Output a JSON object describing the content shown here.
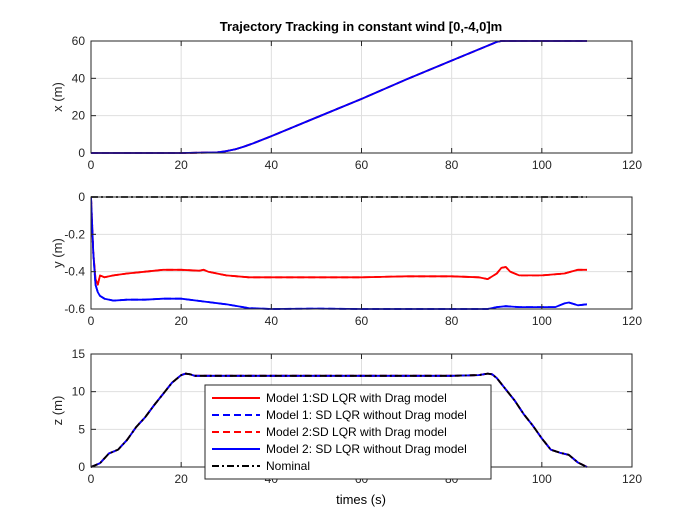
{
  "figure": {
    "title": "Trajectory Tracking in constant wind [0,-4,0]m",
    "xlabel": "times (s)"
  },
  "legend": {
    "placement": "bottom-center",
    "entries": [
      {
        "label": "Model 1:SD LQR with Drag model",
        "color": "#ff0000",
        "dash": "solid"
      },
      {
        "label": "Model 1: SD LQR without Drag model",
        "color": "#0000ff",
        "dash": "dashed"
      },
      {
        "label": "Model 2:SD LQR with Drag model",
        "color": "#ff0000",
        "dash": "dashed"
      },
      {
        "label": "Model 2: SD LQR without Drag model",
        "color": "#0000ff",
        "dash": "solid"
      },
      {
        "label": "Nominal",
        "color": "#000000",
        "dash": "dashdot"
      }
    ]
  },
  "chart_data": [
    {
      "type": "line",
      "title": "Trajectory Tracking in constant wind [0,-4,0]m",
      "xlabel": "",
      "ylabel": "x (m)",
      "xlim": [
        0,
        120
      ],
      "ylim": [
        0,
        60
      ],
      "xticks": [
        0,
        20,
        40,
        60,
        80,
        100,
        120
      ],
      "yticks": [
        0,
        20,
        40,
        60
      ],
      "grid": true,
      "series": [
        {
          "color": "#ff0000",
          "dash": "solid",
          "x": [
            0,
            20,
            28,
            30,
            32,
            34,
            36,
            40,
            50,
            60,
            70,
            80,
            88,
            90,
            91,
            92,
            95,
            100,
            110
          ],
          "y": [
            0,
            0,
            0.3,
            1,
            2,
            3.5,
            5.2,
            9,
            19,
            29,
            39.5,
            49.5,
            57.5,
            59.5,
            60,
            60,
            60,
            60,
            60
          ]
        },
        {
          "color": "#0000ff",
          "dash": "dashed",
          "x": [
            0,
            20,
            28,
            30,
            32,
            34,
            36,
            40,
            50,
            60,
            70,
            80,
            88,
            90,
            91,
            92,
            95,
            100,
            110
          ],
          "y": [
            0,
            0,
            0.3,
            1,
            2,
            3.5,
            5.2,
            9,
            19,
            29,
            39.5,
            49.5,
            57.5,
            59.5,
            60,
            60,
            60,
            60,
            60
          ]
        },
        {
          "color": "#ff0000",
          "dash": "dashed",
          "x": [
            0,
            20,
            28,
            30,
            32,
            34,
            36,
            40,
            50,
            60,
            70,
            80,
            88,
            90,
            91,
            92,
            95,
            100,
            110
          ],
          "y": [
            0,
            0,
            0.3,
            1,
            2,
            3.5,
            5.2,
            9,
            19,
            29,
            39.5,
            49.5,
            57.5,
            59.5,
            60,
            60,
            60,
            60,
            60
          ]
        },
        {
          "color": "#0000ff",
          "dash": "solid",
          "x": [
            0,
            20,
            28,
            30,
            32,
            34,
            36,
            40,
            50,
            60,
            70,
            80,
            88,
            90,
            91,
            92,
            95,
            100,
            110
          ],
          "y": [
            0,
            0,
            0.3,
            1,
            2,
            3.5,
            5.2,
            9,
            19,
            29,
            39.5,
            49.5,
            57.5,
            59.5,
            60,
            60,
            60,
            60,
            60
          ]
        }
      ]
    },
    {
      "type": "line",
      "title": "",
      "xlabel": "",
      "ylabel": "y (m)",
      "xlim": [
        0,
        120
      ],
      "ylim": [
        -0.6,
        0
      ],
      "xticks": [
        0,
        20,
        40,
        60,
        80,
        100,
        120
      ],
      "yticks": [
        -0.6,
        -0.4,
        -0.2,
        0
      ],
      "grid": true,
      "series": [
        {
          "color": "#ff0000",
          "dash": "solid",
          "x": [
            0,
            0.5,
            1,
            1.5,
            2,
            3,
            5,
            8,
            12,
            16,
            20,
            24,
            25,
            26,
            30,
            35,
            40,
            50,
            60,
            70,
            80,
            86,
            88,
            90,
            91,
            92,
            93,
            95,
            100,
            105,
            108,
            110
          ],
          "y": [
            0,
            -0.3,
            -0.44,
            -0.47,
            -0.42,
            -0.43,
            -0.42,
            -0.41,
            -0.4,
            -0.39,
            -0.39,
            -0.395,
            -0.39,
            -0.4,
            -0.42,
            -0.43,
            -0.43,
            -0.43,
            -0.43,
            -0.425,
            -0.425,
            -0.43,
            -0.44,
            -0.41,
            -0.38,
            -0.375,
            -0.4,
            -0.42,
            -0.42,
            -0.41,
            -0.39,
            -0.39
          ]
        },
        {
          "color": "#0000ff",
          "dash": "dashed",
          "x": [
            0,
            0.5,
            1,
            1.5,
            2,
            3,
            5,
            8,
            12,
            16,
            20,
            25,
            30,
            35,
            40,
            50,
            60,
            70,
            80,
            88,
            90,
            92,
            95,
            100,
            103,
            105,
            106,
            108,
            110
          ],
          "y": [
            0,
            -0.3,
            -0.47,
            -0.51,
            -0.53,
            -0.545,
            -0.555,
            -0.55,
            -0.55,
            -0.545,
            -0.545,
            -0.56,
            -0.575,
            -0.595,
            -0.6,
            -0.598,
            -0.6,
            -0.6,
            -0.6,
            -0.6,
            -0.59,
            -0.585,
            -0.59,
            -0.59,
            -0.59,
            -0.57,
            -0.565,
            -0.58,
            -0.575
          ]
        },
        {
          "color": "#ff0000",
          "dash": "dashed",
          "x": [
            0,
            0.5,
            1,
            1.5,
            2,
            3,
            5,
            8,
            12,
            16,
            20,
            24,
            25,
            26,
            30,
            35,
            40,
            50,
            60,
            70,
            80,
            86,
            88,
            90,
            91,
            92,
            93,
            95,
            100,
            105,
            108,
            110
          ],
          "y": [
            0,
            -0.3,
            -0.44,
            -0.47,
            -0.42,
            -0.43,
            -0.42,
            -0.41,
            -0.4,
            -0.39,
            -0.39,
            -0.395,
            -0.39,
            -0.4,
            -0.42,
            -0.43,
            -0.43,
            -0.43,
            -0.43,
            -0.425,
            -0.425,
            -0.43,
            -0.44,
            -0.41,
            -0.38,
            -0.375,
            -0.4,
            -0.42,
            -0.42,
            -0.41,
            -0.39,
            -0.39
          ]
        },
        {
          "color": "#0000ff",
          "dash": "solid",
          "x": [
            0,
            0.5,
            1,
            1.5,
            2,
            3,
            5,
            8,
            12,
            16,
            20,
            25,
            30,
            35,
            40,
            50,
            60,
            70,
            80,
            88,
            90,
            92,
            95,
            100,
            103,
            105,
            106,
            108,
            110
          ],
          "y": [
            0,
            -0.3,
            -0.47,
            -0.51,
            -0.53,
            -0.545,
            -0.555,
            -0.55,
            -0.55,
            -0.545,
            -0.545,
            -0.56,
            -0.575,
            -0.595,
            -0.6,
            -0.598,
            -0.6,
            -0.6,
            -0.6,
            -0.6,
            -0.59,
            -0.585,
            -0.59,
            -0.59,
            -0.59,
            -0.57,
            -0.565,
            -0.58,
            -0.575
          ]
        },
        {
          "color": "#000000",
          "dash": "dashdot",
          "x": [
            0,
            110
          ],
          "y": [
            0,
            0
          ]
        }
      ]
    },
    {
      "type": "line",
      "title": "",
      "xlabel": "times (s)",
      "ylabel": "z (m)",
      "xlim": [
        0,
        120
      ],
      "ylim": [
        0,
        15
      ],
      "xticks": [
        0,
        20,
        40,
        60,
        80,
        100,
        120
      ],
      "yticks": [
        0,
        5,
        10,
        15
      ],
      "grid": true,
      "series": [
        {
          "color": "#ff0000",
          "dash": "solid",
          "x": [
            0,
            2,
            4,
            6,
            8,
            10,
            12,
            14,
            16,
            18,
            20,
            21,
            22,
            23,
            25,
            30,
            40,
            50,
            60,
            70,
            80,
            86,
            88,
            89,
            90,
            92,
            94,
            96,
            98,
            100,
            102,
            104,
            106,
            108,
            110
          ],
          "y": [
            0,
            0.5,
            1.8,
            2.3,
            3.6,
            5.3,
            6.6,
            8.2,
            9.7,
            11.2,
            12.2,
            12.4,
            12.3,
            12.1,
            12.1,
            12.1,
            12.1,
            12.1,
            12.1,
            12.1,
            12.1,
            12.2,
            12.4,
            12.3,
            11.8,
            10.3,
            8.8,
            7.0,
            5.5,
            3.8,
            2.3,
            1.9,
            1.6,
            0.6,
            0
          ]
        },
        {
          "color": "#0000ff",
          "dash": "dashed",
          "x": [
            0,
            2,
            4,
            6,
            8,
            10,
            12,
            14,
            16,
            18,
            20,
            21,
            22,
            23,
            25,
            30,
            40,
            50,
            60,
            70,
            80,
            86,
            88,
            89,
            90,
            92,
            94,
            96,
            98,
            100,
            102,
            104,
            106,
            108,
            110
          ],
          "y": [
            0,
            0.5,
            1.8,
            2.3,
            3.6,
            5.3,
            6.6,
            8.2,
            9.7,
            11.2,
            12.2,
            12.4,
            12.3,
            12.1,
            12.1,
            12.1,
            12.1,
            12.1,
            12.1,
            12.1,
            12.1,
            12.2,
            12.4,
            12.3,
            11.8,
            10.3,
            8.8,
            7.0,
            5.5,
            3.8,
            2.3,
            1.9,
            1.6,
            0.6,
            0
          ]
        },
        {
          "color": "#ff0000",
          "dash": "dashed",
          "x": [
            0,
            2,
            4,
            6,
            8,
            10,
            12,
            14,
            16,
            18,
            20,
            21,
            22,
            23,
            25,
            30,
            40,
            50,
            60,
            70,
            80,
            86,
            88,
            89,
            90,
            92,
            94,
            96,
            98,
            100,
            102,
            104,
            106,
            108,
            110
          ],
          "y": [
            0,
            0.5,
            1.8,
            2.3,
            3.6,
            5.3,
            6.6,
            8.2,
            9.7,
            11.2,
            12.2,
            12.4,
            12.3,
            12.1,
            12.1,
            12.1,
            12.1,
            12.1,
            12.1,
            12.1,
            12.1,
            12.2,
            12.4,
            12.3,
            11.8,
            10.3,
            8.8,
            7.0,
            5.5,
            3.8,
            2.3,
            1.9,
            1.6,
            0.6,
            0
          ]
        },
        {
          "color": "#0000ff",
          "dash": "solid",
          "x": [
            0,
            2,
            4,
            6,
            8,
            10,
            12,
            14,
            16,
            18,
            20,
            21,
            22,
            23,
            25,
            30,
            40,
            50,
            60,
            70,
            80,
            86,
            88,
            89,
            90,
            92,
            94,
            96,
            98,
            100,
            102,
            104,
            106,
            108,
            110
          ],
          "y": [
            0,
            0.5,
            1.8,
            2.3,
            3.6,
            5.3,
            6.6,
            8.2,
            9.7,
            11.2,
            12.2,
            12.4,
            12.3,
            12.1,
            12.1,
            12.1,
            12.1,
            12.1,
            12.1,
            12.1,
            12.1,
            12.2,
            12.4,
            12.3,
            11.8,
            10.3,
            8.8,
            7.0,
            5.5,
            3.8,
            2.3,
            1.9,
            1.6,
            0.6,
            0
          ]
        },
        {
          "color": "#000000",
          "dash": "dashdot",
          "x": [
            0,
            2,
            4,
            6,
            8,
            10,
            12,
            14,
            16,
            18,
            20,
            21,
            22,
            23,
            25,
            30,
            40,
            50,
            60,
            70,
            80,
            86,
            88,
            89,
            90,
            92,
            94,
            96,
            98,
            100,
            102,
            104,
            106,
            108,
            110
          ],
          "y": [
            0,
            0.5,
            1.8,
            2.3,
            3.6,
            5.3,
            6.6,
            8.2,
            9.7,
            11.2,
            12.2,
            12.4,
            12.3,
            12.1,
            12.1,
            12.1,
            12.1,
            12.1,
            12.1,
            12.1,
            12.1,
            12.2,
            12.4,
            12.3,
            11.8,
            10.3,
            8.8,
            7.0,
            5.5,
            3.8,
            2.3,
            1.9,
            1.6,
            0.6,
            0
          ]
        }
      ]
    }
  ]
}
